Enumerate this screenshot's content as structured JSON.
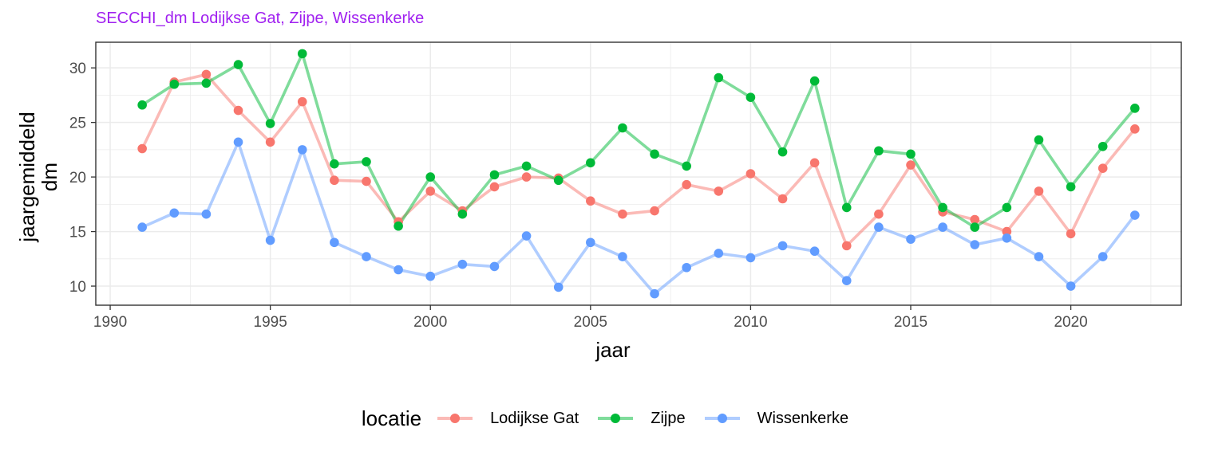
{
  "chart_data": {
    "type": "line",
    "title": "SECCHI_dm Lodijkse Gat, Zijpe, Wissenkerke",
    "xlabel": "jaar",
    "ylabel": "jaargemiddeld\ndm",
    "ylabel_lines": [
      "jaargemiddeld",
      "dm"
    ],
    "xlim": [
      1989.55,
      2023.45
    ],
    "ylim": [
      8.25,
      32.35
    ],
    "x_ticks": [
      1990,
      1995,
      2000,
      2005,
      2010,
      2015,
      2020
    ],
    "y_ticks": [
      10,
      15,
      20,
      25,
      30
    ],
    "grid": true,
    "legend_title": "locatie",
    "legend_position": "bottom",
    "x": [
      1991,
      1992,
      1993,
      1994,
      1995,
      1996,
      1997,
      1998,
      1999,
      2000,
      2001,
      2002,
      2003,
      2004,
      2005,
      2006,
      2007,
      2008,
      2009,
      2010,
      2011,
      2012,
      2013,
      2014,
      2015,
      2016,
      2017,
      2018,
      2019,
      2020,
      2021,
      2022
    ],
    "series": [
      {
        "name": "Lodijkse Gat",
        "color": "#f8766d",
        "values": [
          22.6,
          28.7,
          29.4,
          26.1,
          23.2,
          26.9,
          19.7,
          19.6,
          15.9,
          18.7,
          16.9,
          19.1,
          20.0,
          19.9,
          17.8,
          16.6,
          16.9,
          19.3,
          18.7,
          20.3,
          18.0,
          21.3,
          13.7,
          16.6,
          21.1,
          16.8,
          16.1,
          15.0,
          18.7,
          14.8,
          20.8,
          24.4
        ]
      },
      {
        "name": "Zijpe",
        "color": "#00ba38",
        "values": [
          26.6,
          28.5,
          28.6,
          30.3,
          24.9,
          31.3,
          21.2,
          21.4,
          15.5,
          20.0,
          16.6,
          20.2,
          21.0,
          19.7,
          21.3,
          24.5,
          22.1,
          21.0,
          29.1,
          27.3,
          22.3,
          28.8,
          17.2,
          22.4,
          22.1,
          17.2,
          15.4,
          17.2,
          23.4,
          19.1,
          22.8,
          26.3
        ]
      },
      {
        "name": "Wissenkerke",
        "color": "#619cff",
        "values": [
          15.4,
          16.7,
          16.6,
          23.2,
          14.2,
          22.5,
          14.0,
          12.7,
          11.5,
          10.9,
          12.0,
          11.8,
          14.6,
          9.9,
          14.0,
          12.7,
          9.3,
          11.7,
          13.0,
          12.6,
          13.7,
          13.2,
          10.5,
          15.4,
          14.3,
          15.4,
          13.8,
          14.4,
          12.7,
          10.0,
          12.7,
          16.5
        ]
      }
    ]
  }
}
